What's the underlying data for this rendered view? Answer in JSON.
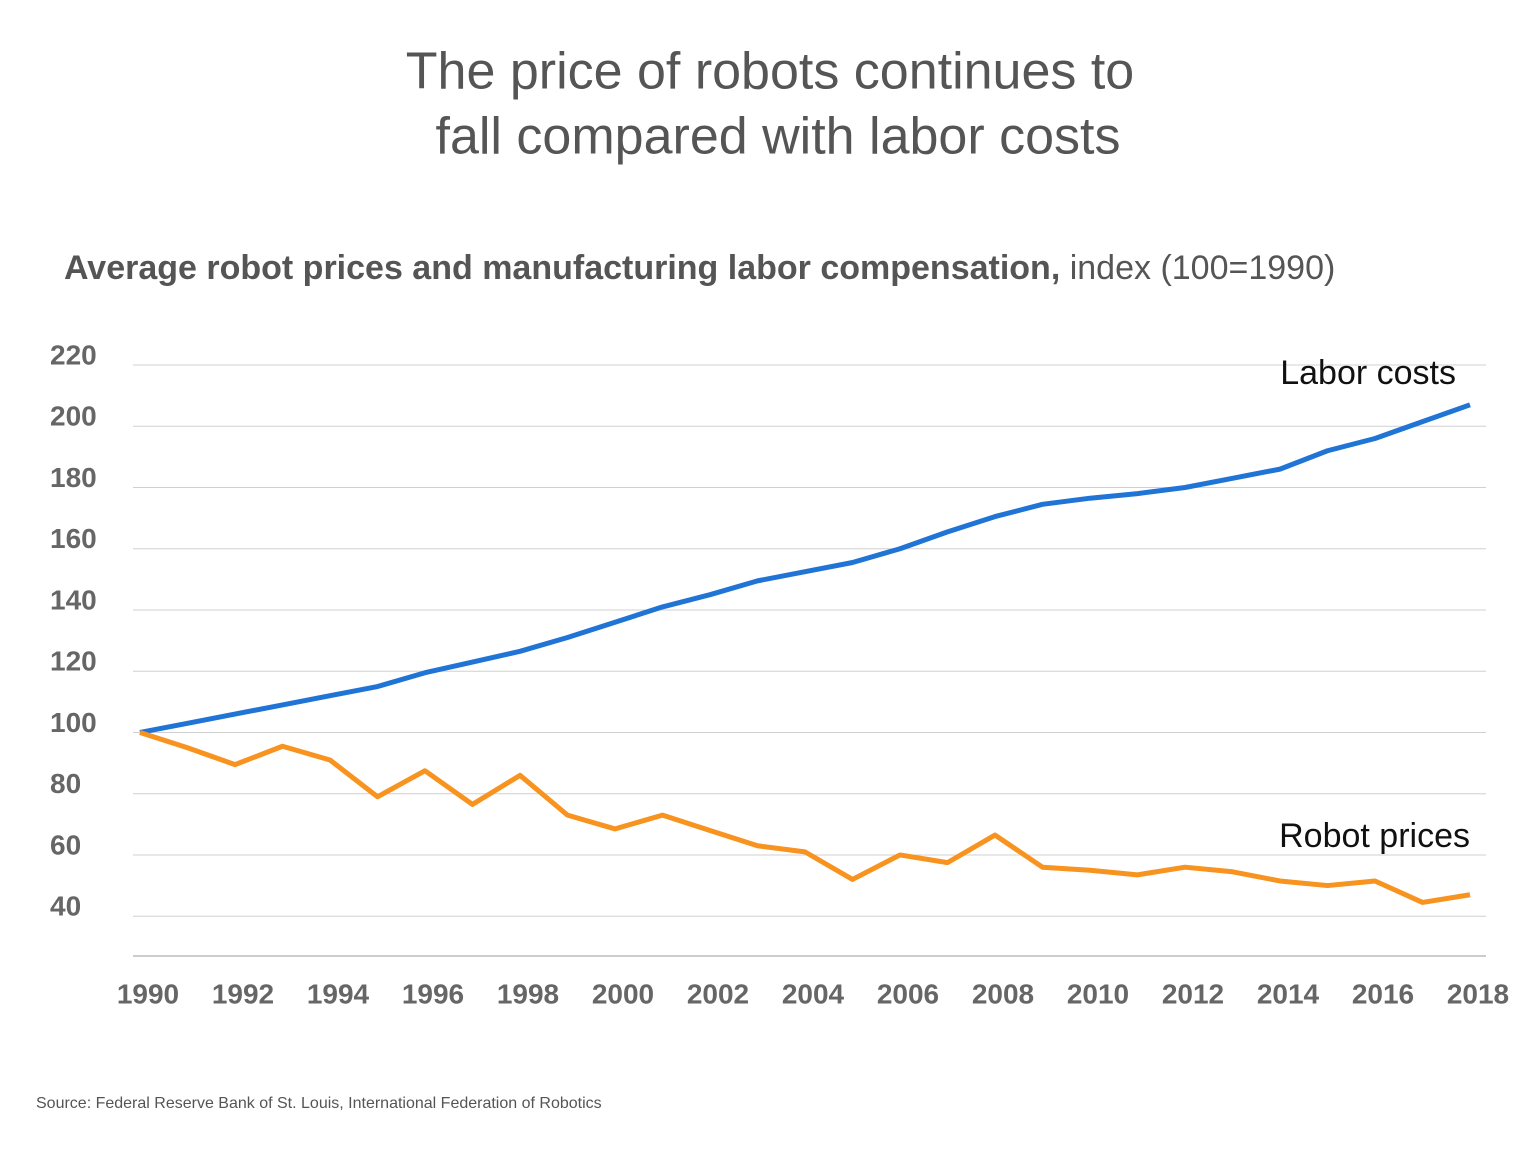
{
  "chart_data": {
    "type": "line",
    "title_lines": [
      "The price of robots continues to",
      "fall compared with labor costs"
    ],
    "subtitle": "Average robot prices and manufacturing labor compensation,",
    "subtitle_unit": "index (100=1990)",
    "source": "Source: Federal Reserve Bank of St. Louis, International Federation of Robotics",
    "x": [
      1990,
      1991,
      1992,
      1993,
      1994,
      1995,
      1996,
      1997,
      1998,
      1999,
      2000,
      2001,
      2002,
      2003,
      2004,
      2005,
      2006,
      2007,
      2008,
      2009,
      2010,
      2011,
      2012,
      2013,
      2014,
      2015,
      2016,
      2017,
      2018
    ],
    "series": [
      {
        "name": "Labor costs",
        "color": "#1f74d6",
        "values": [
          100,
          103,
          106,
          109,
          112,
          115,
          119.5,
          123,
          126.5,
          131,
          136,
          141,
          145,
          149.5,
          152.5,
          155.5,
          160,
          165.5,
          170.5,
          174.5,
          176.5,
          178,
          180,
          183,
          186,
          192,
          196,
          201.5,
          207
        ]
      },
      {
        "name": "Robot prices",
        "color": "#f7931e",
        "values": [
          100,
          95,
          89.5,
          95.5,
          91,
          79,
          87.5,
          76.5,
          86,
          73,
          68.5,
          73,
          68,
          63,
          61,
          52,
          60,
          57.5,
          66.5,
          56,
          55,
          53.5,
          56,
          54.5,
          51.5,
          50,
          51.5,
          44.5,
          47
        ]
      }
    ],
    "xlim": [
      1990,
      2018
    ],
    "xticks": [
      1990,
      1992,
      1994,
      1996,
      1998,
      2000,
      2002,
      2004,
      2006,
      2008,
      2010,
      2012,
      2014,
      2016,
      2018
    ],
    "ylim": [
      27,
      220
    ],
    "yticks": [
      40,
      60,
      80,
      100,
      120,
      140,
      160,
      180,
      200,
      220
    ],
    "grid": true
  }
}
